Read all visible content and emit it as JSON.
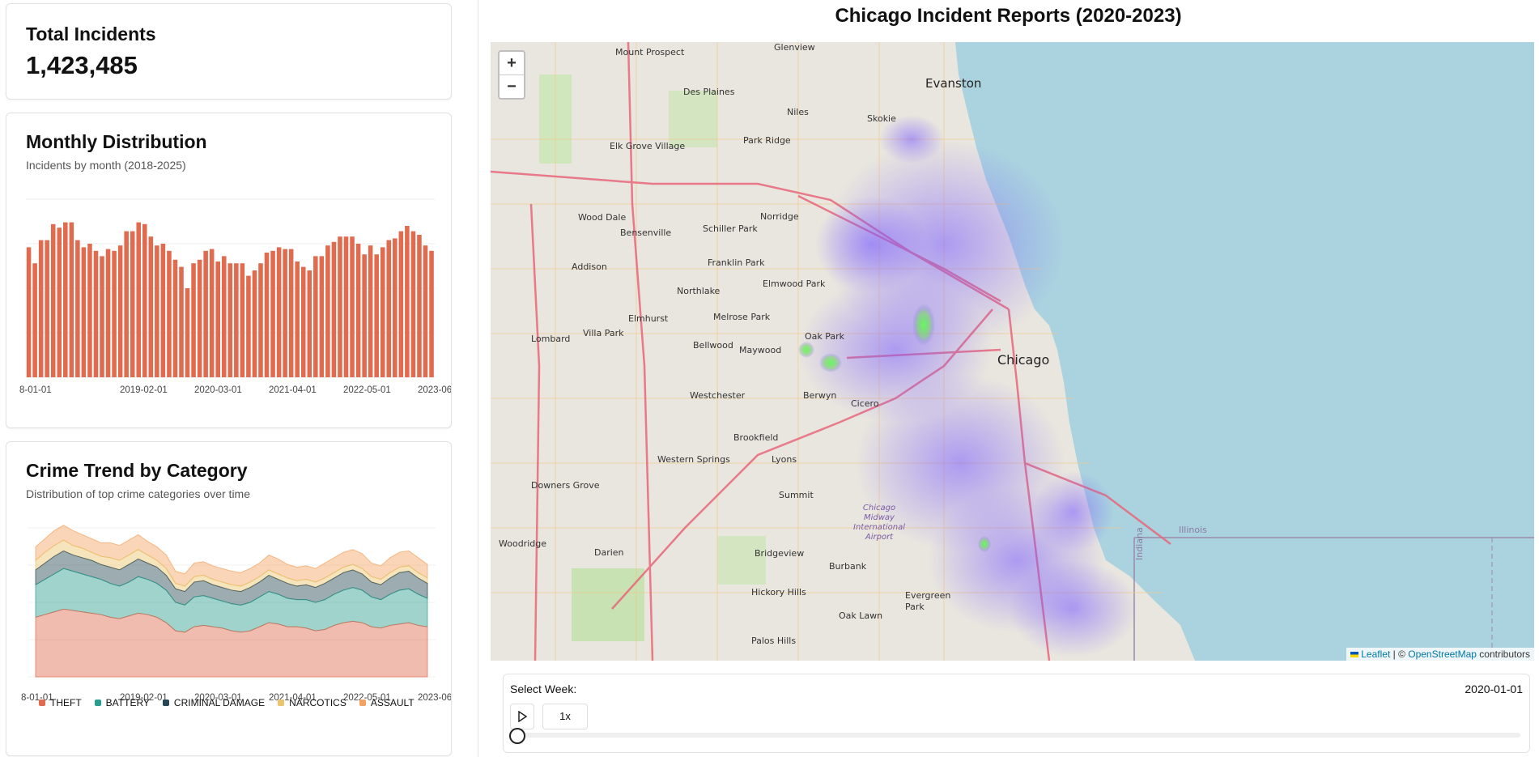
{
  "total": {
    "title": "Total Incidents",
    "value": "1,423,485"
  },
  "monthly": {
    "title": "Monthly Distribution",
    "subtitle": "Incidents by month (2018-2025)",
    "color": "#e06b4f",
    "ticks": [
      "8-01-01",
      "2019-02-01",
      "2020-03-01",
      "2021-04-01",
      "2022-05-01",
      "2023-06-01"
    ],
    "chart_data": {
      "type": "bar",
      "values": [
        73,
        64,
        77,
        77,
        86,
        84,
        87,
        87,
        77,
        73,
        75,
        71,
        68,
        72,
        71,
        74,
        82,
        82,
        87,
        86,
        79,
        74,
        75,
        71,
        66,
        62,
        50,
        64,
        66,
        71,
        72,
        65,
        68,
        64,
        64,
        64,
        57,
        60,
        64,
        70,
        71,
        73,
        72,
        72,
        65,
        62,
        60,
        68,
        68,
        74,
        76,
        79,
        79,
        79,
        75,
        69,
        74,
        69,
        73,
        77,
        78,
        82,
        85,
        82,
        80,
        74,
        71
      ],
      "xlabel": "",
      "ylabel": "",
      "ylim": [
        0,
        100
      ]
    }
  },
  "trend": {
    "title": "Crime Trend by Category",
    "subtitle": "Distribution of top crime categories over time",
    "ticks": [
      "8-01-01",
      "2019-02-01",
      "2020-03-01",
      "2021-04-01",
      "2022-05-01",
      "2023-06-01"
    ],
    "legend": [
      {
        "name": "THEFT",
        "color": "#e06b4f"
      },
      {
        "name": "BATTERY",
        "color": "#2a9d8f"
      },
      {
        "name": "CRIMINAL DAMAGE",
        "color": "#264653"
      },
      {
        "name": "NARCOTICS",
        "color": "#e9c46a"
      },
      {
        "name": "ASSAULT",
        "color": "#f4a261"
      }
    ],
    "chart_data": {
      "type": "area",
      "series": [
        {
          "name": "THEFT",
          "values": [
            44,
            46,
            48,
            50,
            49,
            48,
            47,
            46,
            44,
            43,
            45,
            47,
            46,
            44,
            40,
            34,
            33,
            37,
            38,
            37,
            36,
            34,
            33,
            34,
            37,
            40,
            39,
            37,
            37,
            36,
            34,
            35,
            38,
            40,
            41,
            40,
            37,
            36,
            38,
            39,
            40,
            38,
            37
          ]
        },
        {
          "name": "BATTERY",
          "values": [
            24,
            26,
            28,
            30,
            29,
            28,
            27,
            26,
            25,
            24,
            25,
            27,
            26,
            25,
            24,
            21,
            20,
            22,
            22,
            21,
            20,
            20,
            20,
            21,
            22,
            23,
            22,
            21,
            20,
            21,
            21,
            22,
            23,
            24,
            25,
            24,
            22,
            21,
            23,
            25,
            25,
            23,
            21
          ]
        },
        {
          "name": "CRIMINAL DAMAGE",
          "values": [
            11,
            12,
            13,
            13,
            12,
            12,
            12,
            11,
            12,
            12,
            13,
            13,
            12,
            12,
            11,
            10,
            10,
            11,
            11,
            10,
            10,
            10,
            10,
            11,
            11,
            12,
            11,
            11,
            10,
            11,
            11,
            12,
            12,
            13,
            13,
            12,
            11,
            11,
            12,
            13,
            13,
            12,
            11
          ]
        },
        {
          "name": "NARCOTICS",
          "values": [
            7,
            8,
            8,
            8,
            7,
            7,
            6,
            6,
            7,
            7,
            7,
            7,
            6,
            5,
            5,
            4,
            4,
            4,
            4,
            4,
            4,
            4,
            4,
            4,
            4,
            4,
            4,
            4,
            4,
            4,
            4,
            4,
            4,
            4,
            4,
            4,
            4,
            4,
            4,
            4,
            4,
            4,
            4
          ]
        },
        {
          "name": "ASSAULT",
          "values": [
            10,
            10,
            11,
            11,
            11,
            10,
            10,
            10,
            11,
            11,
            11,
            11,
            10,
            10,
            10,
            9,
            9,
            10,
            10,
            10,
            10,
            10,
            10,
            10,
            10,
            11,
            11,
            10,
            10,
            10,
            10,
            11,
            11,
            11,
            11,
            11,
            10,
            10,
            11,
            11,
            11,
            11,
            10
          ]
        }
      ]
    }
  },
  "main": {
    "title": "Chicago Incident Reports (2020-2023)"
  },
  "map": {
    "zoom_in": "+",
    "zoom_out": "−",
    "attribution_prefix": "Leaflet",
    "attribution_sep": " | © ",
    "attribution_osm": "OpenStreetMap",
    "attribution_suffix": " contributors",
    "labels": {
      "evanston": "Evanston",
      "chicago": "Chicago",
      "skokie": "Skokie",
      "des_plaines": "Des Plaines",
      "niles": "Niles",
      "park_ridge": "Park Ridge",
      "mount_prospect": "Mount Prospect",
      "glenview": "Glenview",
      "elk_grove": "Elk Grove Village",
      "wood_dale": "Wood Dale",
      "bensenville": "Bensenville",
      "schiller_park": "Schiller Park",
      "norridge": "Norridge",
      "franklin_park": "Franklin Park",
      "addison": "Addison",
      "northlake": "Northlake",
      "elmwood_park": "Elmwood Park",
      "elmhurst": "Elmhurst",
      "melrose_park": "Melrose Park",
      "villa_park": "Villa Park",
      "lombard": "Lombard",
      "bellwood": "Bellwood",
      "maywood": "Maywood",
      "oak_park": "Oak Park",
      "westchester": "Westchester",
      "berwyn": "Berwyn",
      "cicero": "Cicero",
      "brookfield": "Brookfield",
      "lyons": "Lyons",
      "western_springs": "Western Springs",
      "downers_grove": "Downers Grove",
      "summit": "Summit",
      "woodridge": "Woodridge",
      "darien": "Darien",
      "bridgeview": "Bridgeview",
      "burbank": "Burbank",
      "hickory_hills": "Hickory Hills",
      "oak_lawn": "Oak Lawn",
      "evergreen_park": "Evergreen Park",
      "palos_hills": "Palos Hills",
      "midway": "Chicago Midway International Airport",
      "illinois": "Illinois",
      "indiana": "Indiana"
    }
  },
  "control": {
    "label": "Select Week:",
    "date": "2020-01-01",
    "speed": "1x"
  }
}
